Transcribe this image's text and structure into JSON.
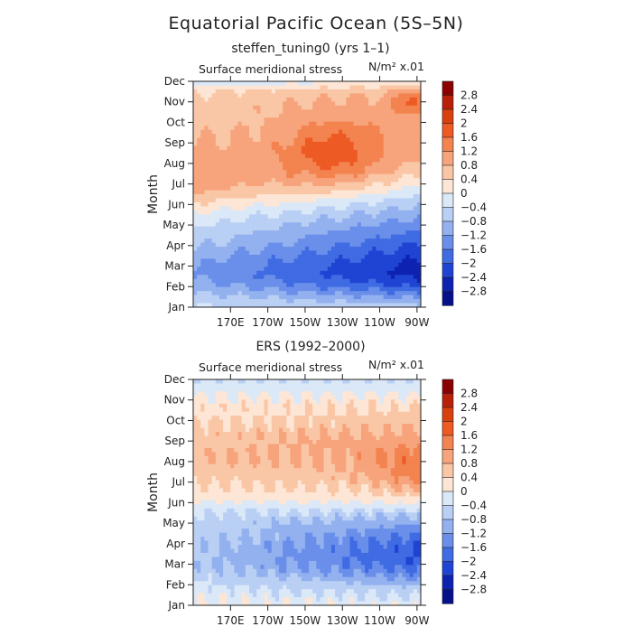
{
  "figure": {
    "title": "Equatorial Pacific Ocean (5S–5N)"
  },
  "colorscale": {
    "levels": [
      "2.8",
      "2.4",
      "2",
      "1.6",
      "1.2",
      "0.8",
      "0.4",
      "0",
      "−0.4",
      "−0.8",
      "−1.2",
      "−1.6",
      "−2",
      "−2.4",
      "−2.8"
    ],
    "colors": [
      "#8b0000",
      "#b8200a",
      "#d8400f",
      "#ee5a24",
      "#f3834f",
      "#f7a47c",
      "#fac7a6",
      "#fde6d5",
      "#dae8f8",
      "#b9cff4",
      "#93b1ef",
      "#6a8fea",
      "#3f6be3",
      "#1f44d4",
      "#0d22b0",
      "#05108a"
    ]
  },
  "chart_data": [
    {
      "type": "heatmap",
      "title": "steffen_tuning0 (yrs 1–1)",
      "variable": "Surface meridional stress",
      "units": "N/m² x.01",
      "ylabel": "Month",
      "y_categories": [
        "Jan",
        "Feb",
        "Mar",
        "Apr",
        "May",
        "Jun",
        "Jul",
        "Aug",
        "Sep",
        "Oct",
        "Nov",
        "Dec"
      ],
      "x_ticks": [
        "170E",
        "170W",
        "150W",
        "130W",
        "110W",
        "90W"
      ],
      "x_tick_positions_deg_east": [
        170,
        190,
        210,
        230,
        250,
        270
      ],
      "xlim_deg_east": [
        150,
        272
      ],
      "ylim_month": [
        1,
        12
      ],
      "colorbar_position": "right"
    },
    {
      "type": "heatmap",
      "title": "ERS (1992–2000)",
      "variable": "Surface meridional stress",
      "units": "N/m² x.01",
      "ylabel": "Month",
      "y_categories": [
        "Jan",
        "Feb",
        "Mar",
        "Apr",
        "May",
        "Jun",
        "Jul",
        "Aug",
        "Sep",
        "Oct",
        "Nov",
        "Dec"
      ],
      "x_ticks": [
        "170E",
        "170W",
        "150W",
        "130W",
        "110W",
        "90W"
      ],
      "x_tick_positions_deg_east": [
        170,
        190,
        210,
        230,
        250,
        270
      ],
      "xlim_deg_east": [
        150,
        272
      ],
      "ylim_month": [
        1,
        12
      ],
      "colorbar_position": "right"
    }
  ]
}
